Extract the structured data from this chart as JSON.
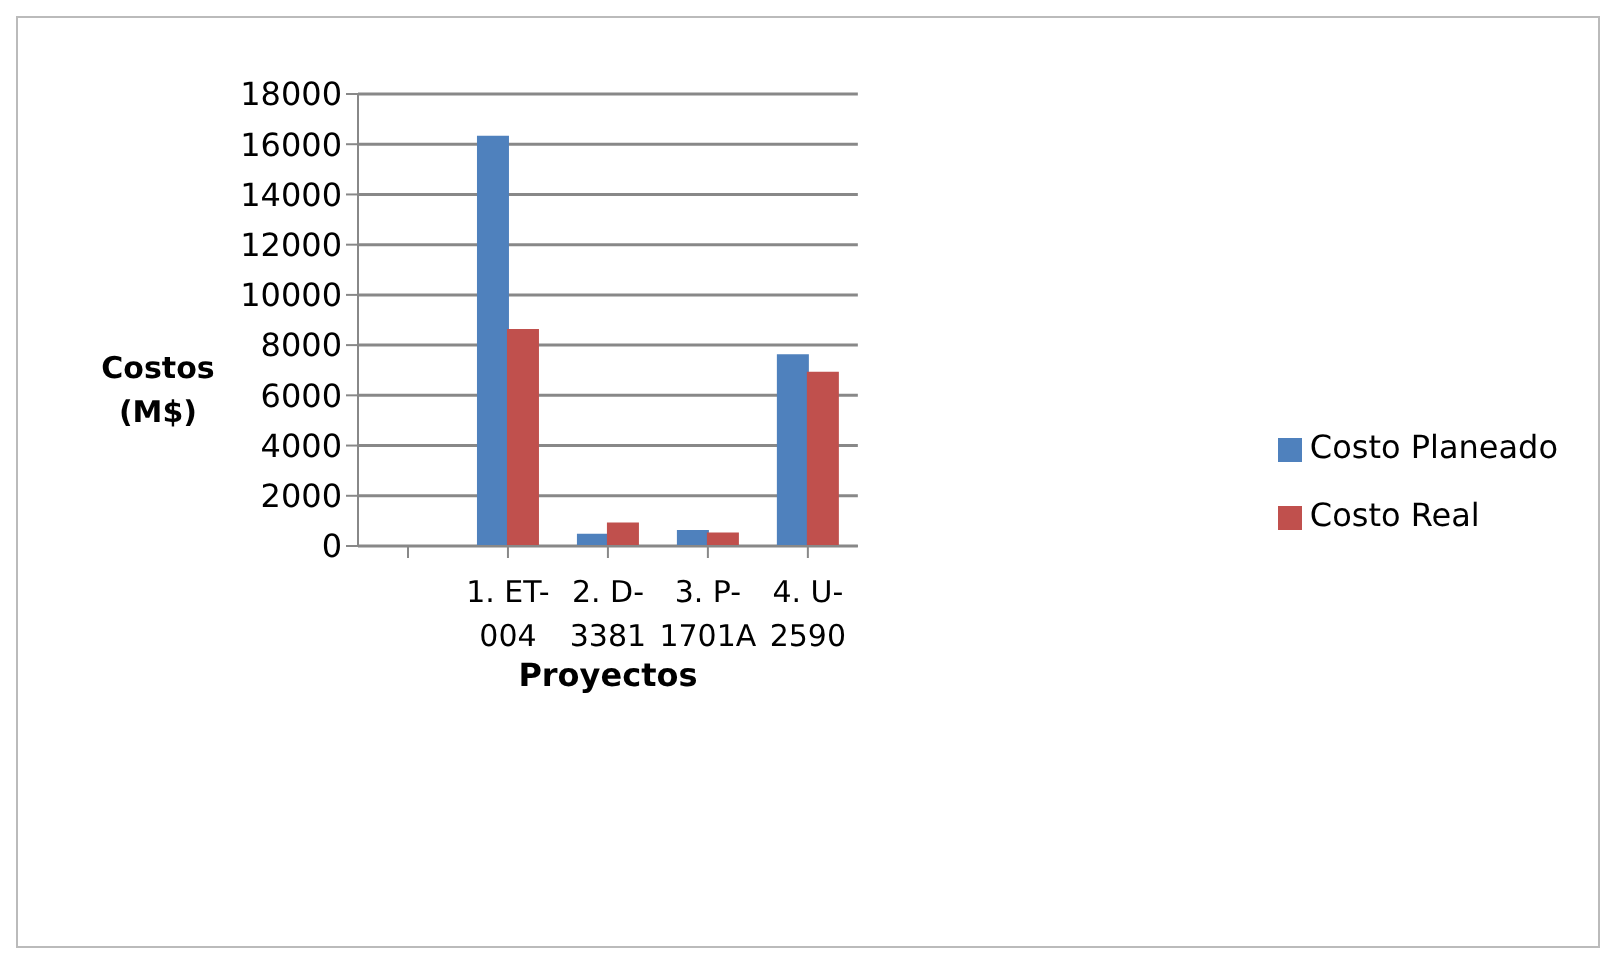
{
  "chart_data": {
    "type": "bar",
    "xlabel": "Proyectos",
    "ylabel": "Costos (M$)",
    "categories": [
      null,
      "1. ET-004",
      "2. D-3381",
      "3. P-1701A",
      "4. U-2590"
    ],
    "series": [
      {
        "name": "Costo Planeado",
        "color": "#4f81bd",
        "values": [
          null,
          16300,
          450,
          600,
          7600
        ]
      },
      {
        "name": "Costo Real",
        "color": "#c0504d",
        "values": [
          null,
          8600,
          900,
          500,
          6900
        ]
      }
    ],
    "ylim": [
      0,
      18000
    ],
    "yticks": [
      0,
      2000,
      4000,
      6000,
      8000,
      10000,
      12000,
      14000,
      16000,
      18000
    ],
    "grid": "y",
    "legend": "right"
  }
}
